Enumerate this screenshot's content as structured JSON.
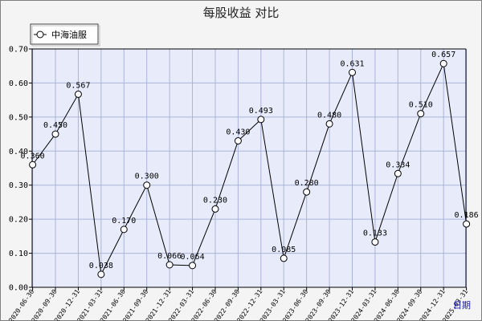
{
  "colors": {
    "plot_bg": "#e8ecfa",
    "grid": "#aab4d8",
    "line": "#000000",
    "marker_fill": "#ffffff",
    "frame_bg": "#f4f4f4"
  },
  "chart_data": {
    "type": "line",
    "title": "每股收益  对比",
    "xlabel": "日期",
    "ylabel": "",
    "ylim": [
      0,
      0.7
    ],
    "y_ticks": [
      "0.00",
      "0.10",
      "0.20",
      "0.30",
      "0.40",
      "0.50",
      "0.60",
      "0.70"
    ],
    "grid": true,
    "legend_position": "top-left",
    "categories": [
      "2020-06-30",
      "2020-09-30",
      "2020-12-31",
      "2021-03-31",
      "2021-06-30",
      "2021-09-30",
      "2021-12-31",
      "2022-03-31",
      "2022-06-30",
      "2022-09-30",
      "2022-12-31",
      "2023-03-31",
      "2023-06-30",
      "2023-09-30",
      "2023-12-31",
      "2024-03-31",
      "2024-06-30",
      "2024-09-30",
      "2024-12-31",
      "2025-03-31"
    ],
    "series": [
      {
        "name": "中海油服",
        "values": [
          0.36,
          0.45,
          0.567,
          0.038,
          0.17,
          0.3,
          0.066,
          0.064,
          0.23,
          0.43,
          0.493,
          0.085,
          0.28,
          0.48,
          0.631,
          0.133,
          0.334,
          0.51,
          0.657,
          0.186
        ],
        "labels": [
          "0.360",
          "0.450",
          "0.567",
          "0.038",
          "0.170",
          "0.300",
          "0.066",
          "0.064",
          "0.230",
          "0.430",
          "0.493",
          "0.085",
          "0.280",
          "0.480",
          "0.631",
          "0.133",
          "0.334",
          "0.510",
          "0.657",
          "0.186"
        ]
      }
    ]
  }
}
